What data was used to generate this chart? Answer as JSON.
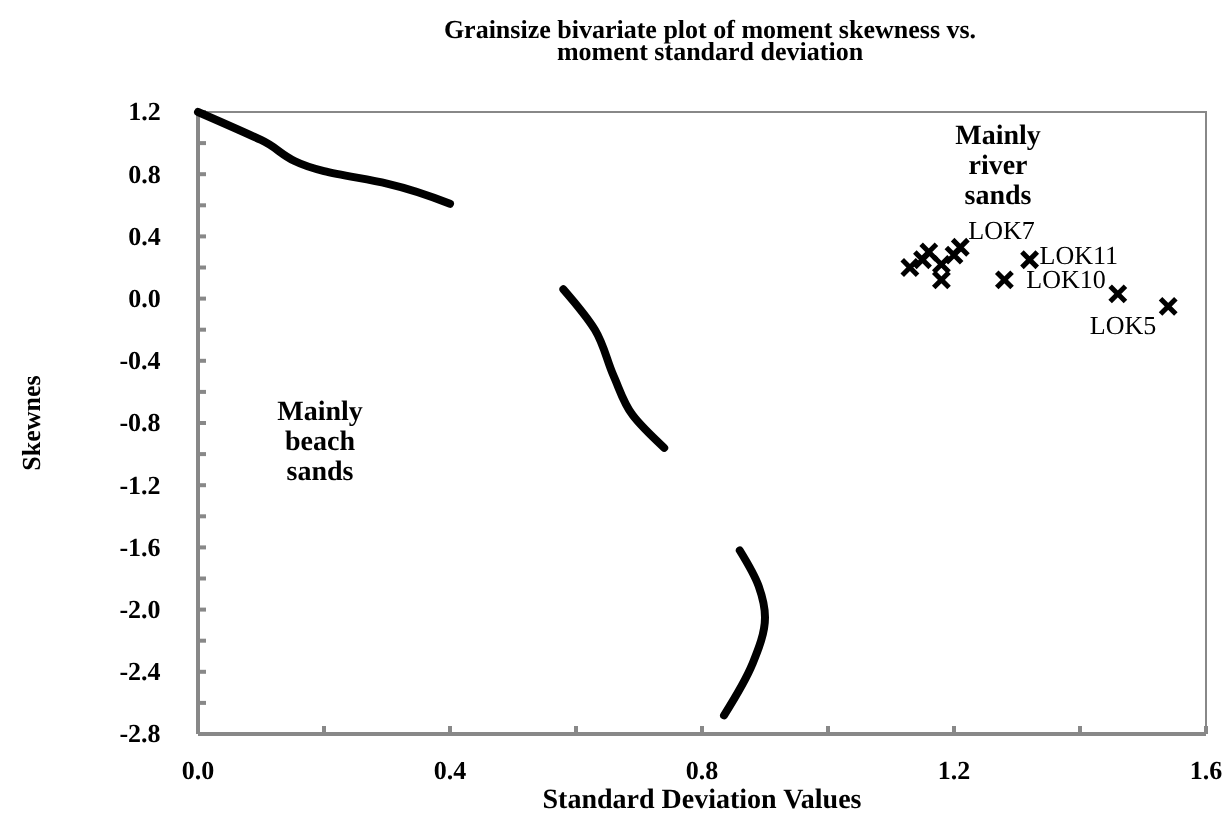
{
  "chart_data": {
    "type": "scatter",
    "title": "Grainsize bivariate plot of moment skewness vs. moment standard deviation",
    "xlabel": "Standard Deviation Values",
    "ylabel": "Skewnes",
    "xlim": [
      0,
      1.6
    ],
    "ylim": [
      -2.8,
      1.2
    ],
    "xticks": [
      {
        "value": 0,
        "label": "0.0"
      },
      {
        "value": 0.2,
        "label": null
      },
      {
        "value": 0.4,
        "label": "0.4"
      },
      {
        "value": 0.6,
        "label": null
      },
      {
        "value": 0.8,
        "label": "0.8"
      },
      {
        "value": 1.0,
        "label": null
      },
      {
        "value": 1.2,
        "label": "1.2"
      },
      {
        "value": 1.4,
        "label": null
      },
      {
        "value": 1.6,
        "label": "1.6"
      }
    ],
    "yticks": [
      {
        "value": -2.8,
        "label": "-2.8"
      },
      {
        "value": -2.6,
        "label": null
      },
      {
        "value": -2.4,
        "label": "-2.4"
      },
      {
        "value": -2.2,
        "label": null
      },
      {
        "value": -2.0,
        "label": "-2.0"
      },
      {
        "value": -1.8,
        "label": null
      },
      {
        "value": -1.6,
        "label": "-1.6"
      },
      {
        "value": -1.4,
        "label": null
      },
      {
        "value": -1.2,
        "label": "-1.2"
      },
      {
        "value": -1.0,
        "label": null
      },
      {
        "value": -0.8,
        "label": "-0.8"
      },
      {
        "value": -0.6,
        "label": null
      },
      {
        "value": -0.4,
        "label": "-0.4"
      },
      {
        "value": -0.2,
        "label": null
      },
      {
        "value": 0.0,
        "label": "0.0"
      },
      {
        "value": 0.2,
        "label": null
      },
      {
        "value": 0.4,
        "label": "0.4"
      },
      {
        "value": 0.6,
        "label": null
      },
      {
        "value": 0.8,
        "label": "0.8"
      },
      {
        "value": 1.0,
        "label": null
      },
      {
        "value": 1.2,
        "label": "1.2"
      }
    ],
    "grid": false,
    "series": [
      {
        "type": "scatter",
        "marker": "cross",
        "color": "#000000",
        "x": [
          1.13,
          1.16,
          1.18,
          1.2,
          1.15,
          1.18,
          1.32,
          1.28,
          1.46,
          1.54,
          1.21
        ],
        "values": [
          0.2,
          0.3,
          0.12,
          0.28,
          0.25,
          0.22,
          0.25,
          0.12,
          0.03,
          -0.05,
          0.33
        ]
      },
      {
        "type": "line",
        "color": "#000000",
        "x": [
          0,
          0.1,
          0.2,
          0.3,
          0.4
        ],
        "values": [
          1.2,
          1.02,
          0.82,
          0.74,
          0.61
        ]
      },
      {
        "type": "line",
        "color": "#000000",
        "x": [
          0.58,
          0.63,
          0.66,
          0.69,
          0.74
        ],
        "values": [
          0.06,
          -0.2,
          -0.5,
          -0.75,
          -0.96
        ]
      },
      {
        "type": "line",
        "color": "#000000",
        "x": [
          0.86,
          0.89,
          0.9,
          0.88,
          0.835
        ],
        "values": [
          -1.62,
          -1.85,
          -2.05,
          -2.35,
          -2.68
        ]
      }
    ],
    "annotations": [
      "Mainly river sands",
      "Mainly beach sands",
      {
        "text": "LOK7",
        "x": 1.21,
        "y": 0.33
      },
      {
        "text": "LOK11",
        "x": 1.32,
        "y": 0.25
      },
      {
        "text": "LOK10",
        "x": 1.46,
        "y": 0.03
      },
      {
        "text": "LOK5",
        "x": 1.54,
        "y": -0.05
      }
    ]
  }
}
